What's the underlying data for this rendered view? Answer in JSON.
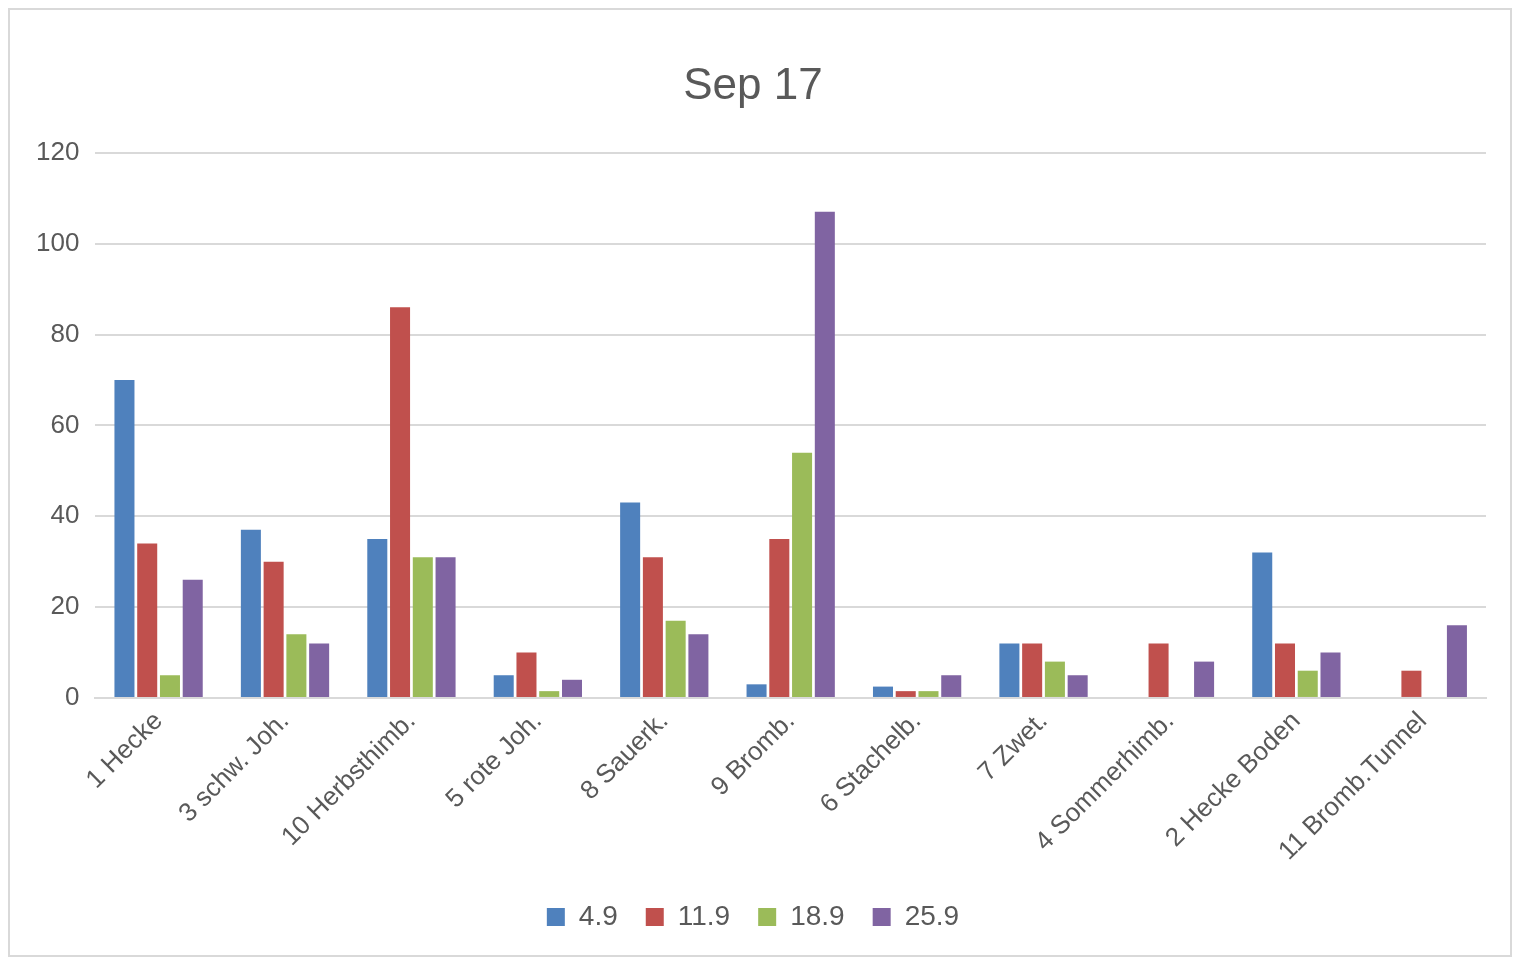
{
  "chart_data": {
    "type": "bar",
    "title": "Sep 17",
    "categories": [
      "1 Hecke",
      "3 schw. Joh.",
      "10 Herbsthimb.",
      "5 rote Joh.",
      "8 Sauerk.",
      "9 Bromb.",
      "6 Stachelb.",
      "7 Zwet.",
      "4 Sommerhimb.",
      "2 Hecke Boden",
      "11 Bromb.Tunnel"
    ],
    "series": [
      {
        "name": "4.9",
        "color": "#4f81bd",
        "values": [
          70,
          37,
          35,
          5,
          43,
          3,
          2.5,
          12,
          null,
          32,
          null
        ]
      },
      {
        "name": "11.9",
        "color": "#c0504d",
        "values": [
          34,
          30,
          86,
          10,
          31,
          35,
          1.5,
          12,
          12,
          12,
          6
        ]
      },
      {
        "name": "18.9",
        "color": "#9bbb59",
        "values": [
          5,
          14,
          31,
          1.5,
          17,
          54,
          1.5,
          8,
          null,
          6,
          null
        ]
      },
      {
        "name": "25.9",
        "color": "#8064a2",
        "values": [
          26,
          12,
          31,
          4,
          14,
          107,
          5,
          5,
          8,
          10,
          16
        ]
      }
    ],
    "ylim": [
      0,
      120
    ],
    "yticks": [
      0,
      20,
      40,
      60,
      80,
      100,
      120
    ],
    "grid": "y",
    "legend": "bottom"
  }
}
